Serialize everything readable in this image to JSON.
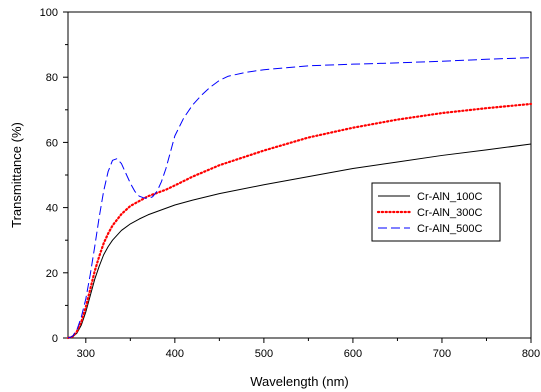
{
  "chart_data": {
    "type": "line",
    "title": "",
    "xlabel": "Wavelength (nm)",
    "ylabel": "Transmittance (%)",
    "xlim": [
      280,
      800
    ],
    "ylim": [
      0,
      100
    ],
    "x_ticks": [
      300,
      400,
      500,
      600,
      700,
      800
    ],
    "y_ticks": [
      0,
      20,
      40,
      60,
      80,
      100
    ],
    "grid": false,
    "legend_position": "right",
    "series": [
      {
        "name": "Cr-AlN_100C",
        "color": "#000000",
        "style": "solid",
        "x": [
          280,
          285,
          290,
          295,
          300,
          305,
          310,
          315,
          320,
          325,
          330,
          340,
          350,
          360,
          370,
          380,
          390,
          400,
          420,
          450,
          500,
          550,
          600,
          650,
          700,
          750,
          800
        ],
        "y": [
          0,
          0.3,
          1.5,
          4,
          8,
          13,
          18,
          22,
          25.5,
          28,
          30,
          33,
          35,
          36.5,
          37.8,
          38.8,
          39.8,
          40.8,
          42.3,
          44.3,
          47,
          49.5,
          52,
          54,
          56,
          57.7,
          59.5
        ]
      },
      {
        "name": "Cr-AlN_300C",
        "color": "#ff0000",
        "style": "dotted",
        "x": [
          280,
          285,
          290,
          295,
          300,
          305,
          310,
          315,
          320,
          325,
          330,
          340,
          350,
          360,
          370,
          380,
          390,
          400,
          420,
          450,
          500,
          550,
          600,
          650,
          700,
          750,
          800
        ],
        "y": [
          0,
          0.4,
          2,
          5,
          9.5,
          15,
          20.5,
          25,
          29,
          32,
          34.5,
          38,
          40.5,
          42,
          43.5,
          44.5,
          45.5,
          46.8,
          49.5,
          53,
          57.5,
          61.5,
          64.5,
          67,
          69,
          70.5,
          71.8
        ]
      },
      {
        "name": "Cr-AlN_500C",
        "color": "#0000ff",
        "style": "dashed",
        "x": [
          280,
          285,
          290,
          295,
          300,
          305,
          310,
          315,
          320,
          325,
          330,
          335,
          340,
          345,
          350,
          355,
          360,
          365,
          370,
          375,
          380,
          385,
          390,
          395,
          400,
          410,
          420,
          430,
          440,
          450,
          460,
          480,
          500,
          550,
          600,
          650,
          700,
          750,
          800
        ],
        "y": [
          0,
          0.5,
          2.5,
          6.5,
          12,
          19.5,
          28,
          37,
          45,
          51,
          54.5,
          55,
          53.5,
          50.5,
          47.5,
          45,
          43.5,
          43,
          42.8,
          43.3,
          45,
          48,
          52,
          57,
          62,
          67.5,
          71.5,
          74.5,
          77,
          79,
          80.3,
          81.5,
          82.3,
          83.5,
          84,
          84.4,
          84.9,
          85.5,
          86
        ]
      }
    ]
  }
}
